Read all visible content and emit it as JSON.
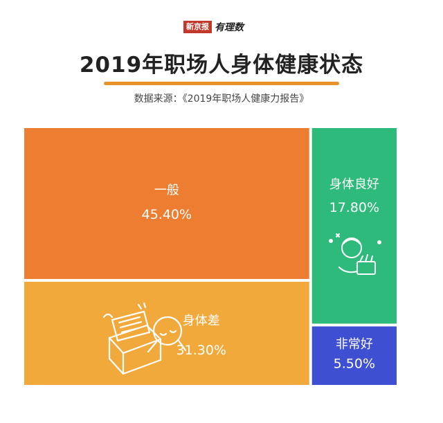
{
  "brand": {
    "box_text": "新京报",
    "script_text": "有理数"
  },
  "header": {
    "title": "2019年职场人身体健康状态",
    "source": "数据来源：《2019年职场人健康力报告》"
  },
  "colors": {
    "accent": "#e8922c",
    "tiles": [
      "#ed7d31",
      "#f2a93b",
      "#2dba7a",
      "#3f4fd1"
    ]
  },
  "chart_data": {
    "type": "treemap",
    "title": "2019年职场人身体健康状态",
    "items": [
      {
        "label": "一般",
        "value": 45.4,
        "display": "45.40%"
      },
      {
        "label": "身体差",
        "value": 31.3,
        "display": "31.30%"
      },
      {
        "label": "身体良好",
        "value": 17.8,
        "display": "17.80%"
      },
      {
        "label": "非常好",
        "value": 5.5,
        "display": "5.50%"
      }
    ]
  }
}
